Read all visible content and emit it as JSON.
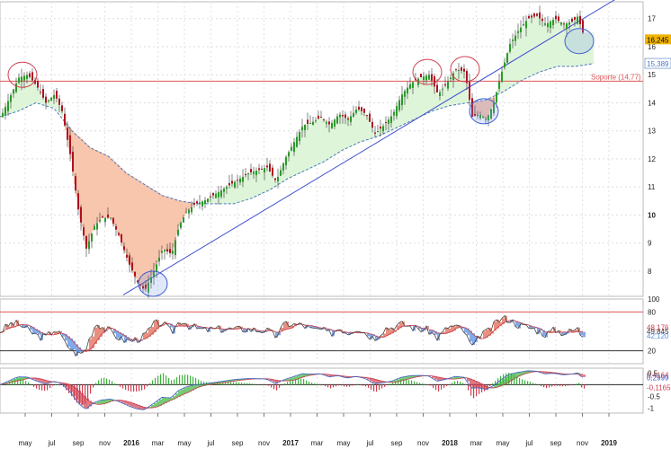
{
  "chart_data": [
    {
      "type": "candlestick",
      "title": "",
      "y_ticks": [
        8,
        9,
        10,
        11,
        12,
        13,
        14,
        15,
        16,
        17
      ],
      "ylim": [
        7.1,
        17.6
      ],
      "x_ticks": [
        "may",
        "jul",
        "sep",
        "nov",
        "2016",
        "mar",
        "may",
        "jul",
        "sep",
        "nov",
        "2017",
        "mar",
        "may",
        "jul",
        "sep",
        "nov",
        "2018",
        "mar",
        "may",
        "jul",
        "sep",
        "nov",
        "2019"
      ],
      "x_bold": [
        "2016",
        "2017",
        "2018",
        "2019"
      ],
      "price_label": "16,245",
      "ma_label": "15,389",
      "support": {
        "value": 14.77,
        "label": "Soporte (14,77)"
      },
      "trendline": {
        "from": 7.15,
        "to": 17.8
      },
      "colors": {
        "up": "#2a9a2a",
        "down": "#b01020",
        "ma": "#4a78c0",
        "support": "#e05555",
        "trend": "#4050d0",
        "above_fill": "#dff5da",
        "below_fill": "#f8c5ad"
      },
      "price_path": [
        [
          0,
          13.5
        ],
        [
          10,
          14.2
        ],
        [
          20,
          14.9
        ],
        [
          30,
          15.0
        ],
        [
          40,
          14.6
        ],
        [
          50,
          14.0
        ],
        [
          60,
          14.3
        ],
        [
          68,
          13.7
        ],
        [
          78,
          12.0
        ],
        [
          86,
          10.2
        ],
        [
          95,
          8.8
        ],
        [
          104,
          9.6
        ],
        [
          112,
          9.9
        ],
        [
          122,
          9.9
        ],
        [
          132,
          9.2
        ],
        [
          142,
          8.3
        ],
        [
          152,
          7.6
        ],
        [
          160,
          7.3
        ],
        [
          170,
          8.0
        ],
        [
          180,
          8.8
        ],
        [
          190,
          8.6
        ],
        [
          198,
          9.6
        ],
        [
          206,
          10.1
        ],
        [
          216,
          10.4
        ],
        [
          226,
          10.5
        ],
        [
          236,
          10.7
        ],
        [
          246,
          10.9
        ],
        [
          256,
          11.1
        ],
        [
          266,
          11.3
        ],
        [
          276,
          11.5
        ],
        [
          286,
          11.6
        ],
        [
          296,
          11.7
        ],
        [
          306,
          11.2
        ],
        [
          316,
          12.0
        ],
        [
          326,
          12.6
        ],
        [
          336,
          13.2
        ],
        [
          346,
          13.3
        ],
        [
          356,
          13.5
        ],
        [
          366,
          13.2
        ],
        [
          376,
          13.6
        ],
        [
          386,
          13.4
        ],
        [
          396,
          13.8
        ],
        [
          406,
          13.6
        ],
        [
          416,
          12.9
        ],
        [
          426,
          13.2
        ],
        [
          436,
          13.6
        ],
        [
          446,
          14.3
        ],
        [
          456,
          14.7
        ],
        [
          466,
          14.9
        ],
        [
          476,
          15.0
        ],
        [
          486,
          14.3
        ],
        [
          496,
          14.7
        ],
        [
          506,
          15.2
        ],
        [
          516,
          15.1
        ],
        [
          524,
          13.5
        ],
        [
          532,
          13.6
        ],
        [
          540,
          13.4
        ],
        [
          548,
          14.0
        ],
        [
          556,
          15.0
        ],
        [
          566,
          16.1
        ],
        [
          576,
          16.6
        ],
        [
          586,
          17.0
        ],
        [
          596,
          17.1
        ],
        [
          606,
          16.8
        ],
        [
          616,
          17.0
        ],
        [
          626,
          16.8
        ],
        [
          636,
          16.9
        ],
        [
          642,
          17.1
        ],
        [
          646,
          16.5
        ]
      ],
      "ma_path": [
        [
          0,
          13.5
        ],
        [
          20,
          13.7
        ],
        [
          40,
          14.0
        ],
        [
          60,
          13.8
        ],
        [
          80,
          13.0
        ],
        [
          100,
          12.4
        ],
        [
          120,
          12.1
        ],
        [
          140,
          11.5
        ],
        [
          160,
          11.1
        ],
        [
          180,
          10.7
        ],
        [
          200,
          10.5
        ],
        [
          220,
          10.4
        ],
        [
          240,
          10.4
        ],
        [
          260,
          10.4
        ],
        [
          280,
          10.6
        ],
        [
          300,
          10.9
        ],
        [
          320,
          11.3
        ],
        [
          340,
          11.6
        ],
        [
          360,
          11.9
        ],
        [
          380,
          12.3
        ],
        [
          400,
          12.6
        ],
        [
          420,
          12.8
        ],
        [
          440,
          13.1
        ],
        [
          460,
          13.4
        ],
        [
          480,
          13.7
        ],
        [
          500,
          13.9
        ],
        [
          520,
          14.0
        ],
        [
          540,
          14.1
        ],
        [
          560,
          14.4
        ],
        [
          580,
          14.8
        ],
        [
          600,
          15.1
        ],
        [
          620,
          15.3
        ],
        [
          640,
          15.3
        ],
        [
          660,
          15.4
        ]
      ],
      "markers": [
        {
          "x": 25,
          "y": 15.0,
          "color": "#d04050"
        },
        {
          "x": 475,
          "y": 15.1,
          "color": "#d04050"
        },
        {
          "x": 517,
          "y": 15.2,
          "color": "#d04050"
        },
        {
          "x": 538,
          "y": 13.7,
          "color": "#4060d0"
        },
        {
          "x": 170,
          "y": 7.55,
          "color": "#4060d0"
        },
        {
          "x": 644,
          "y": 16.2,
          "color": "#4060d0"
        }
      ]
    },
    {
      "type": "line",
      "title": "",
      "y_ticks": [
        100,
        80,
        20
      ],
      "ylim": [
        0,
        100
      ],
      "levels": [
        80,
        20
      ],
      "labels": [
        "48,176",
        "49,845",
        "42,120"
      ],
      "colors": {
        "line": "#444444",
        "signal": "#cc4050",
        "level_top": "#e05555",
        "level_bottom": "#333333",
        "up_fill": "#e06a55",
        "down_fill": "#5a8ee0"
      }
    },
    {
      "type": "line",
      "title": "",
      "y_ticks": [
        0.5,
        -0.5,
        -1
      ],
      "ylim": [
        -1.2,
        0.7
      ],
      "labels": [
        "0,4164",
        "0,2999",
        "-0,1165"
      ],
      "colors": {
        "line": "#3b60c0",
        "signal": "#cc4050",
        "pos_fill": "#3cb43c",
        "neg_fill": "#d04050",
        "zero": "#222222"
      }
    }
  ]
}
